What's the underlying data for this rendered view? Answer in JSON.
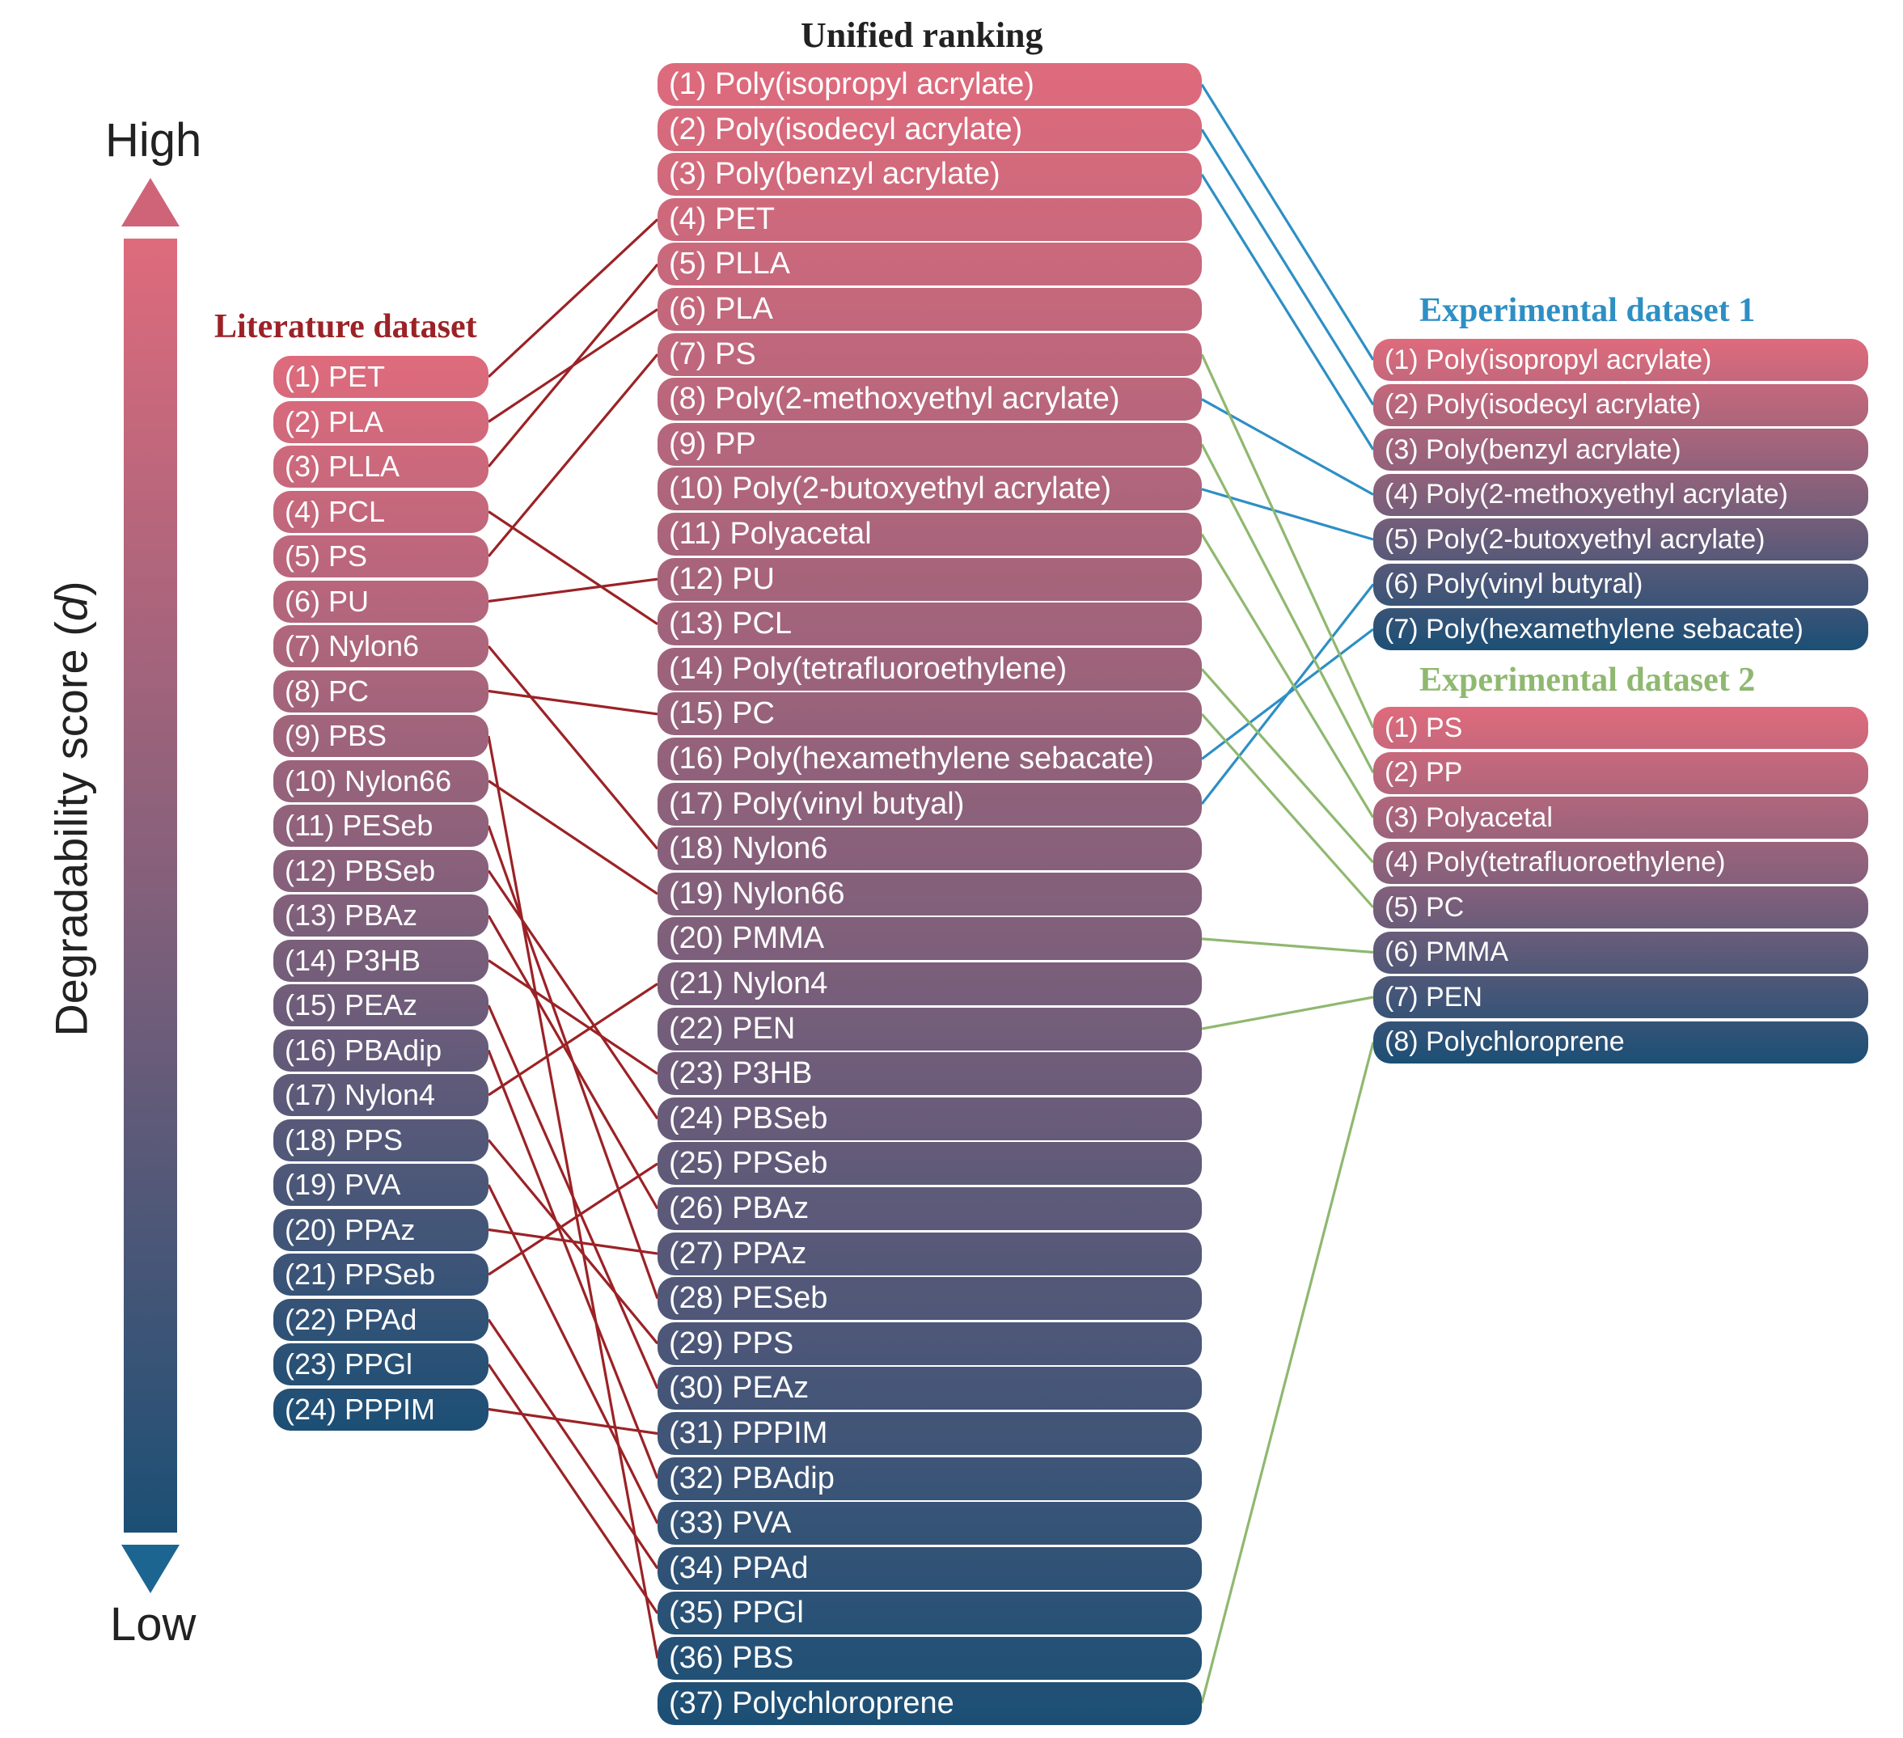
{
  "titles": {
    "literature": "Literature dataset",
    "unified": "Unified ranking",
    "exp1": "Experimental dataset 1",
    "exp2": "Experimental dataset 2"
  },
  "axis": {
    "high": "High",
    "low": "Low",
    "label_text": "Degradability score (",
    "label_symbol": "d",
    "label_close": ")"
  },
  "colors": {
    "high": "#de6b7c",
    "mid": "#84607b",
    "low": "#1c4f75",
    "literature_link": "#9b2226",
    "exp1_link": "#2e8fc4",
    "exp2_link": "#8fb870"
  },
  "literature": [
    "(1) PET",
    "(2) PLA",
    "(3) PLLA",
    "(4) PCL",
    "(5) PS",
    "(6) PU",
    "(7) Nylon6",
    "(8) PC",
    "(9) PBS",
    "(10) Nylon66",
    "(11) PESeb",
    "(12) PBSeb",
    "(13) PBAz",
    "(14) P3HB",
    "(15) PEAz",
    "(16) PBAdip",
    "(17) Nylon4",
    "(18) PPS",
    "(19) PVA",
    "(20) PPAz",
    "(21) PPSeb",
    "(22) PPAd",
    "(23) PPGl",
    "(24) PPPIM"
  ],
  "unified": [
    "(1) Poly(isopropyl acrylate)",
    "(2) Poly(isodecyl acrylate)",
    "(3) Poly(benzyl acrylate)",
    "(4) PET",
    "(5) PLLA",
    "(6) PLA",
    "(7) PS",
    "(8) Poly(2-methoxyethyl acrylate)",
    "(9) PP",
    "(10) Poly(2-butoxyethyl acrylate)",
    "(11) Polyacetal",
    "(12) PU",
    "(13) PCL",
    "(14) Poly(tetrafluoroethylene)",
    "(15) PC",
    "(16) Poly(hexamethylene sebacate)",
    "(17) Poly(vinyl butyal)",
    "(18) Nylon6",
    "(19) Nylon66",
    "(20) PMMA",
    "(21) Nylon4",
    "(22) PEN",
    "(23) P3HB",
    "(24) PBSeb",
    "(25) PPSeb",
    "(26) PBAz",
    "(27) PPAz",
    "(28) PESeb",
    "(29) PPS",
    "(30) PEAz",
    "(31) PPPIM",
    "(32) PBAdip",
    "(33) PVA",
    "(34) PPAd",
    "(35) PPGl",
    "(36) PBS",
    "(37) Polychloroprene"
  ],
  "exp1": [
    "(1) Poly(isopropyl acrylate)",
    "(2) Poly(isodecyl acrylate)",
    "(3) Poly(benzyl acrylate)",
    "(4) Poly(2-methoxyethyl acrylate)",
    "(5) Poly(2-butoxyethyl acrylate)",
    "(6) Poly(vinyl butyral)",
    "(7) Poly(hexamethylene sebacate)"
  ],
  "exp2": [
    "(1) PS",
    "(2) PP",
    "(3) Polyacetal",
    "(4) Poly(tetrafluoroethylene)",
    "(5) PC",
    "(6) PMMA",
    "(7) PEN",
    "(8) Polychloroprene"
  ],
  "links": {
    "literature_to_unified": [
      4,
      6,
      5,
      13,
      7,
      12,
      18,
      15,
      36,
      19,
      28,
      24,
      26,
      23,
      30,
      32,
      21,
      29,
      33,
      27,
      25,
      34,
      35,
      31
    ],
    "exp1_to_unified": [
      1,
      2,
      3,
      8,
      10,
      17,
      16
    ],
    "exp2_to_unified": [
      7,
      9,
      11,
      14,
      15,
      20,
      22,
      37
    ]
  }
}
